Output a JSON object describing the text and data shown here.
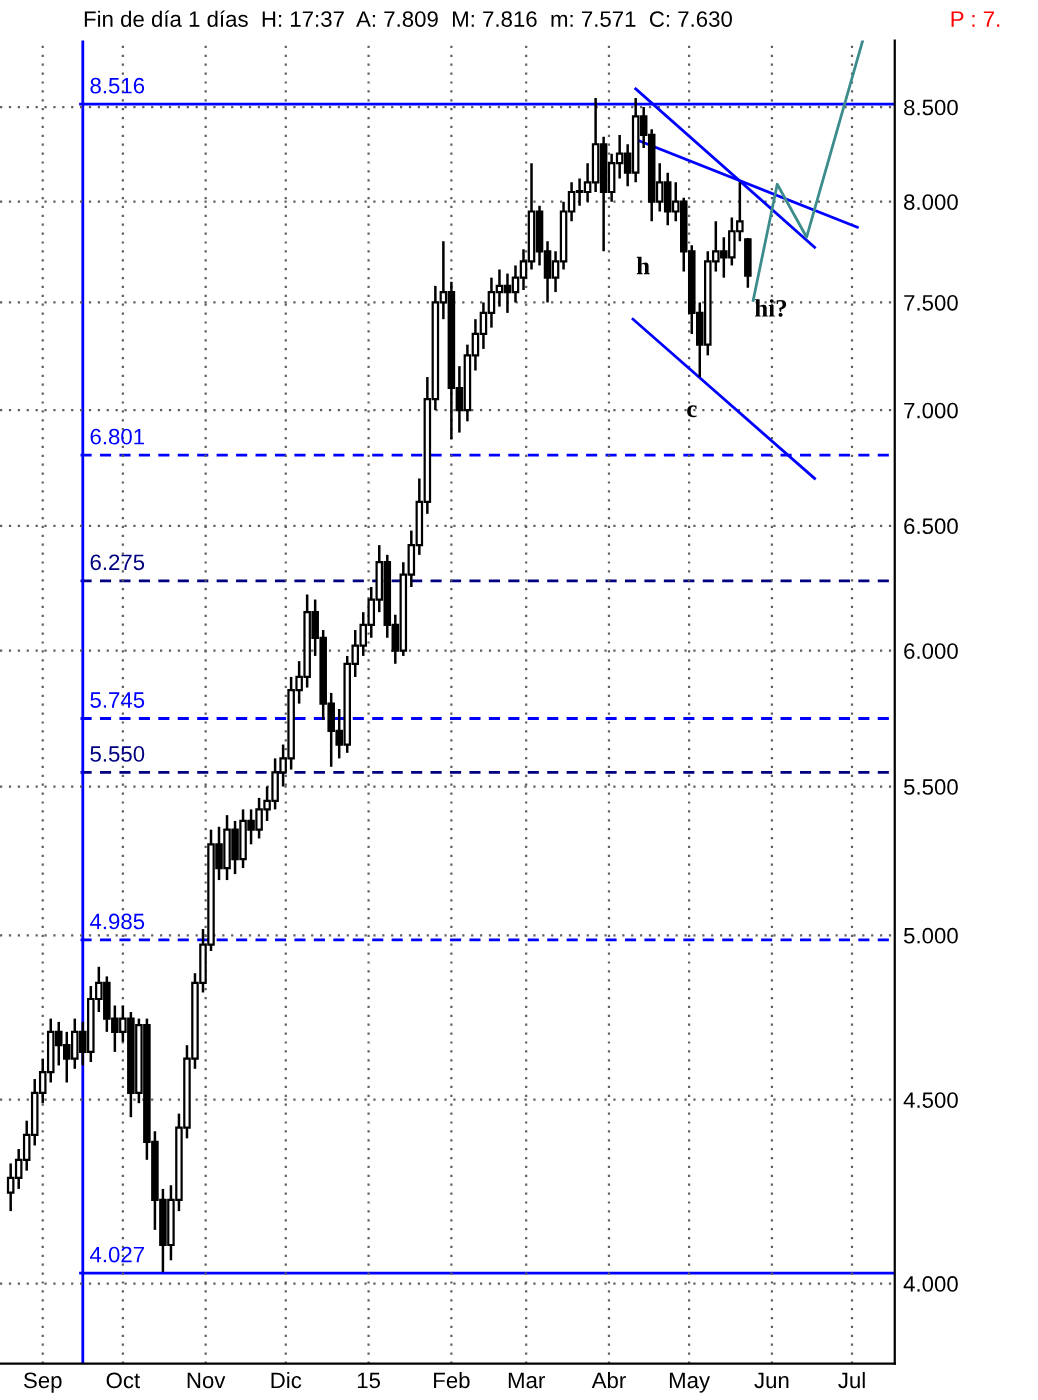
{
  "chart_data": {
    "type": "candlestick",
    "title": "Fin de día 1 días  H: 17:37  A: 7.809  M: 7.816  m: 7.571  C: 7.630",
    "subtitle": "P : 7.",
    "x": [
      "2014-08-20",
      "2014-08-23",
      "2014-08-26",
      "2014-08-29",
      "2014-09-01",
      "2014-09-04",
      "2014-09-07",
      "2014-09-10",
      "2014-09-13",
      "2014-09-16",
      "2014-09-19",
      "2014-09-22",
      "2014-09-25",
      "2014-09-28",
      "2014-10-01",
      "2014-10-04",
      "2014-10-07",
      "2014-10-10",
      "2014-10-13",
      "2014-10-16",
      "2014-10-19",
      "2014-10-22",
      "2014-10-25",
      "2014-10-28",
      "2014-10-31",
      "2014-11-03",
      "2014-11-06",
      "2014-11-09",
      "2014-11-12",
      "2014-11-15",
      "2014-11-18",
      "2014-11-21",
      "2014-11-24",
      "2014-11-27",
      "2014-11-30",
      "2014-12-03",
      "2014-12-06",
      "2014-12-09",
      "2014-12-12",
      "2014-12-15",
      "2014-12-18",
      "2014-12-21",
      "2014-12-24",
      "2014-12-27",
      "2014-12-30",
      "2015-01-02",
      "2015-01-05",
      "2015-01-08",
      "2015-01-11",
      "2015-01-14",
      "2015-01-17",
      "2015-01-20",
      "2015-01-23",
      "2015-01-26",
      "2015-01-29",
      "2015-02-01",
      "2015-02-04",
      "2015-02-07",
      "2015-02-10",
      "2015-02-13",
      "2015-02-16",
      "2015-02-19",
      "2015-02-22",
      "2015-02-25",
      "2015-02-28",
      "2015-03-03",
      "2015-03-06",
      "2015-03-09",
      "2015-03-12",
      "2015-03-15",
      "2015-03-18",
      "2015-03-21",
      "2015-03-24",
      "2015-03-27",
      "2015-03-30",
      "2015-04-02",
      "2015-04-05",
      "2015-04-08",
      "2015-04-11",
      "2015-04-14",
      "2015-04-17",
      "2015-04-20",
      "2015-04-23",
      "2015-04-26",
      "2015-04-29",
      "2015-05-02",
      "2015-05-05",
      "2015-05-08",
      "2015-05-11",
      "2015-05-14",
      "2015-05-17",
      "2015-05-20",
      "2015-05-23"
    ],
    "ohlc": [
      [
        4.24,
        4.32,
        4.19,
        4.28
      ],
      [
        4.28,
        4.36,
        4.25,
        4.33
      ],
      [
        4.33,
        4.44,
        4.3,
        4.4
      ],
      [
        4.4,
        4.56,
        4.37,
        4.52
      ],
      [
        4.52,
        4.62,
        4.49,
        4.58
      ],
      [
        4.58,
        4.74,
        4.55,
        4.7
      ],
      [
        4.7,
        4.73,
        4.6,
        4.66
      ],
      [
        4.66,
        4.7,
        4.55,
        4.62
      ],
      [
        4.62,
        4.74,
        4.59,
        4.7
      ],
      [
        4.7,
        4.73,
        4.6,
        4.64
      ],
      [
        4.64,
        4.84,
        4.61,
        4.8
      ],
      [
        4.8,
        4.9,
        4.76,
        4.85
      ],
      [
        4.85,
        4.87,
        4.7,
        4.74
      ],
      [
        4.74,
        4.78,
        4.64,
        4.7
      ],
      [
        4.7,
        4.78,
        4.67,
        4.74
      ],
      [
        4.74,
        4.76,
        4.45,
        4.52
      ],
      [
        4.52,
        4.74,
        4.49,
        4.72
      ],
      [
        4.72,
        4.74,
        4.33,
        4.38
      ],
      [
        4.38,
        4.41,
        4.14,
        4.22
      ],
      [
        4.22,
        4.25,
        4.03,
        4.1
      ],
      [
        4.1,
        4.26,
        4.06,
        4.22
      ],
      [
        4.22,
        4.46,
        4.19,
        4.42
      ],
      [
        4.42,
        4.66,
        4.39,
        4.62
      ],
      [
        4.62,
        4.88,
        4.59,
        4.85
      ],
      [
        4.85,
        5.02,
        4.82,
        4.97
      ],
      [
        4.97,
        5.35,
        4.95,
        5.3
      ],
      [
        5.3,
        5.36,
        5.18,
        5.22
      ],
      [
        5.22,
        5.4,
        5.18,
        5.35
      ],
      [
        5.35,
        5.38,
        5.2,
        5.25
      ],
      [
        5.25,
        5.42,
        5.22,
        5.38
      ],
      [
        5.38,
        5.42,
        5.3,
        5.35
      ],
      [
        5.35,
        5.46,
        5.32,
        5.42
      ],
      [
        5.42,
        5.5,
        5.38,
        5.45
      ],
      [
        5.45,
        5.6,
        5.42,
        5.55
      ],
      [
        5.55,
        5.65,
        5.5,
        5.6
      ],
      [
        5.6,
        5.9,
        5.56,
        5.85
      ],
      [
        5.85,
        5.96,
        5.8,
        5.9
      ],
      [
        5.9,
        6.22,
        5.86,
        6.15
      ],
      [
        6.15,
        6.2,
        5.98,
        6.05
      ],
      [
        6.05,
        6.08,
        5.74,
        5.8
      ],
      [
        5.8,
        5.84,
        5.57,
        5.7
      ],
      [
        5.7,
        5.78,
        5.6,
        5.65
      ],
      [
        5.65,
        5.98,
        5.62,
        5.95
      ],
      [
        5.95,
        6.08,
        5.9,
        6.02
      ],
      [
        6.02,
        6.15,
        5.98,
        6.1
      ],
      [
        6.1,
        6.25,
        6.05,
        6.2
      ],
      [
        6.2,
        6.42,
        6.15,
        6.35
      ],
      [
        6.35,
        6.38,
        6.05,
        6.1
      ],
      [
        6.1,
        6.14,
        5.95,
        6.0
      ],
      [
        6.0,
        6.35,
        5.98,
        6.3
      ],
      [
        6.3,
        6.48,
        6.25,
        6.42
      ],
      [
        6.42,
        6.7,
        6.38,
        6.6
      ],
      [
        6.6,
        7.15,
        6.55,
        7.05
      ],
      [
        7.05,
        7.58,
        7.0,
        7.5
      ],
      [
        7.5,
        7.8,
        7.42,
        7.55
      ],
      [
        7.55,
        7.6,
        6.87,
        7.1
      ],
      [
        7.1,
        7.2,
        6.9,
        7.0
      ],
      [
        7.0,
        7.3,
        6.95,
        7.25
      ],
      [
        7.25,
        7.42,
        7.18,
        7.35
      ],
      [
        7.35,
        7.5,
        7.28,
        7.45
      ],
      [
        7.45,
        7.62,
        7.38,
        7.55
      ],
      [
        7.55,
        7.66,
        7.48,
        7.58
      ],
      [
        7.58,
        7.64,
        7.45,
        7.55
      ],
      [
        7.55,
        7.68,
        7.5,
        7.62
      ],
      [
        7.62,
        7.76,
        7.56,
        7.7
      ],
      [
        7.7,
        8.2,
        7.66,
        7.95
      ],
      [
        7.95,
        7.98,
        7.68,
        7.75
      ],
      [
        7.75,
        7.8,
        7.5,
        7.62
      ],
      [
        7.62,
        7.75,
        7.55,
        7.7
      ],
      [
        7.7,
        8.0,
        7.66,
        7.95
      ],
      [
        7.95,
        8.1,
        7.9,
        8.05
      ],
      [
        8.05,
        8.12,
        7.98,
        8.05
      ],
      [
        8.05,
        8.2,
        8.0,
        8.1
      ],
      [
        8.1,
        8.55,
        8.05,
        8.3
      ],
      [
        8.3,
        8.34,
        7.75,
        8.05
      ],
      [
        8.05,
        8.25,
        8.0,
        8.2
      ],
      [
        8.2,
        8.35,
        8.12,
        8.25
      ],
      [
        8.25,
        8.3,
        8.08,
        8.15
      ],
      [
        8.15,
        8.55,
        8.1,
        8.45
      ],
      [
        8.45,
        8.5,
        8.28,
        8.35
      ],
      [
        8.35,
        8.38,
        7.9,
        8.0
      ],
      [
        8.0,
        8.2,
        7.95,
        8.1
      ],
      [
        8.1,
        8.15,
        7.88,
        7.95
      ],
      [
        7.95,
        8.1,
        7.9,
        8.0
      ],
      [
        8.0,
        8.02,
        7.65,
        7.75
      ],
      [
        7.75,
        7.78,
        7.35,
        7.45
      ],
      [
        7.45,
        7.5,
        7.15,
        7.3
      ],
      [
        7.3,
        7.75,
        7.25,
        7.7
      ],
      [
        7.7,
        7.9,
        7.65,
        7.75
      ],
      [
        7.75,
        7.82,
        7.62,
        7.72
      ],
      [
        7.72,
        7.92,
        7.68,
        7.85
      ],
      [
        7.85,
        8.1,
        7.8,
        7.9
      ],
      [
        7.809,
        7.816,
        7.571,
        7.63
      ]
    ],
    "series": [
      {
        "type": "line",
        "x": [
          "2015-04-11",
          "2015-06-17"
        ],
        "values": [
          8.6,
          7.77
        ],
        "color": "#0000ff"
      },
      {
        "type": "line",
        "x": [
          "2015-04-12",
          "2015-07-03"
        ],
        "values": [
          8.32,
          7.87
        ],
        "color": "#0000ff"
      },
      {
        "type": "line",
        "x": [
          "2015-04-10",
          "2015-06-17"
        ],
        "values": [
          7.42,
          6.7
        ],
        "color": "#0000ff"
      },
      {
        "type": "line",
        "x": [
          "2015-05-25",
          "2015-06-03",
          "2015-06-14",
          "2015-07-05"
        ],
        "values": [
          7.51,
          8.09,
          7.82,
          8.87
        ],
        "color": "#3c8c8c"
      }
    ],
    "ref_lines": [
      {
        "axis": "y",
        "value": 8.516,
        "label": "8.516",
        "color": "#0000ff",
        "line_style": "solid"
      },
      {
        "axis": "y",
        "value": 6.801,
        "label": "6.801",
        "color": "#0000ff",
        "line_style": "dashed"
      },
      {
        "axis": "y",
        "value": 6.275,
        "label": "6.275",
        "color": "#000080",
        "line_style": "dashed"
      },
      {
        "axis": "y",
        "value": 5.745,
        "label": "5.745",
        "color": "#0000ff",
        "line_style": "dashed"
      },
      {
        "axis": "y",
        "value": 5.55,
        "label": "5.550",
        "color": "#000080",
        "line_style": "dashed"
      },
      {
        "axis": "y",
        "value": 4.985,
        "label": "4.985",
        "color": "#0000ff",
        "line_style": "dashed"
      },
      {
        "axis": "y",
        "value": 4.027,
        "label": "4.027",
        "color": "#0000ff",
        "line_style": "solid"
      },
      {
        "axis": "x",
        "value": "2014-09-16",
        "label": null,
        "color": "#0000ff",
        "line_style": "solid"
      }
    ],
    "annotations": [
      "h",
      "hi?",
      "c"
    ],
    "xlim": [
      "2014-08-16",
      "2015-07-17"
    ],
    "xticks": [
      {
        "value": "2014-09-01",
        "label": "Sep"
      },
      {
        "value": "2014-10-01",
        "label": "Oct"
      },
      {
        "value": "2014-11-01",
        "label": "Nov"
      },
      {
        "value": "2014-12-01",
        "label": "Dic"
      },
      {
        "value": "2015-01-01",
        "label": "15"
      },
      {
        "value": "2015-02-01",
        "label": "Feb"
      },
      {
        "value": "2015-03-01",
        "label": "Mar"
      },
      {
        "value": "2015-04-01",
        "label": "Abr"
      },
      {
        "value": "2015-05-01",
        "label": "May"
      },
      {
        "value": "2015-06-01",
        "label": "Jun"
      },
      {
        "value": "2015-07-01",
        "label": "Jul"
      }
    ],
    "log": true,
    "ylim": [
      3.8,
      8.87
    ],
    "yticks": [
      {
        "value": 4,
        "label": "4.000"
      },
      {
        "value": 4.5,
        "label": "4.500"
      },
      {
        "value": 5,
        "label": "5.000"
      },
      {
        "value": 5.5,
        "label": "5.500"
      },
      {
        "value": 6,
        "label": "6.000"
      },
      {
        "value": 6.5,
        "label": "6.500"
      },
      {
        "value": 7,
        "label": "7.000"
      },
      {
        "value": 7.5,
        "label": "7.500"
      },
      {
        "value": 8,
        "label": "8.000"
      },
      {
        "value": 8.5,
        "label": "8.500"
      }
    ],
    "grid": true
  }
}
